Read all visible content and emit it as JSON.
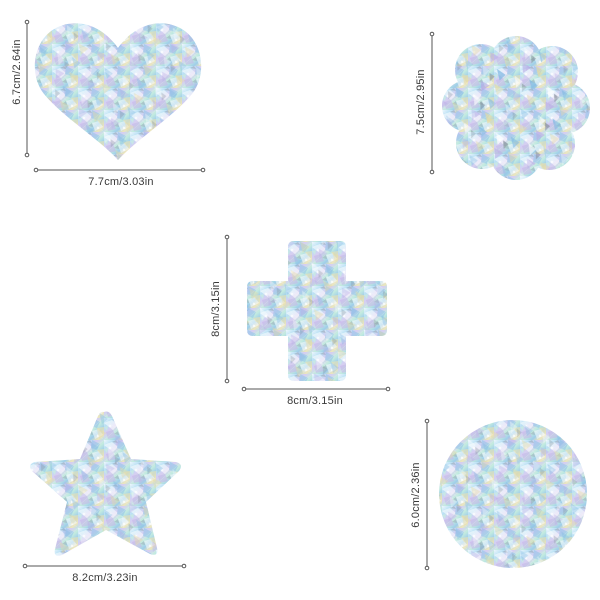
{
  "products": [
    {
      "shape": "heart",
      "width_label": "7.7cm/3.03in",
      "height_label": "6.7cm/2.64in"
    },
    {
      "shape": "flower",
      "height_label": "7.5cm/2.95in"
    },
    {
      "shape": "cross",
      "width_label": "8cm/3.15in",
      "height_label": "8cm/3.15in"
    },
    {
      "shape": "star",
      "width_label": "8.2cm/3.23in"
    },
    {
      "shape": "circle",
      "height_label": "6.0cm/2.36in"
    }
  ],
  "colors": {
    "holo_base": "#c6e7f6",
    "holo_light": "#eaf6fc",
    "holo_blue": "#93c8ea",
    "holo_lilac": "#c4b8ea",
    "holo_mint": "#c9efe1",
    "holo_gold": "#efe4b0",
    "holo_pink": "#eac8dc",
    "holo_gray": "#8e9aa8",
    "dim_line": "#555555"
  }
}
